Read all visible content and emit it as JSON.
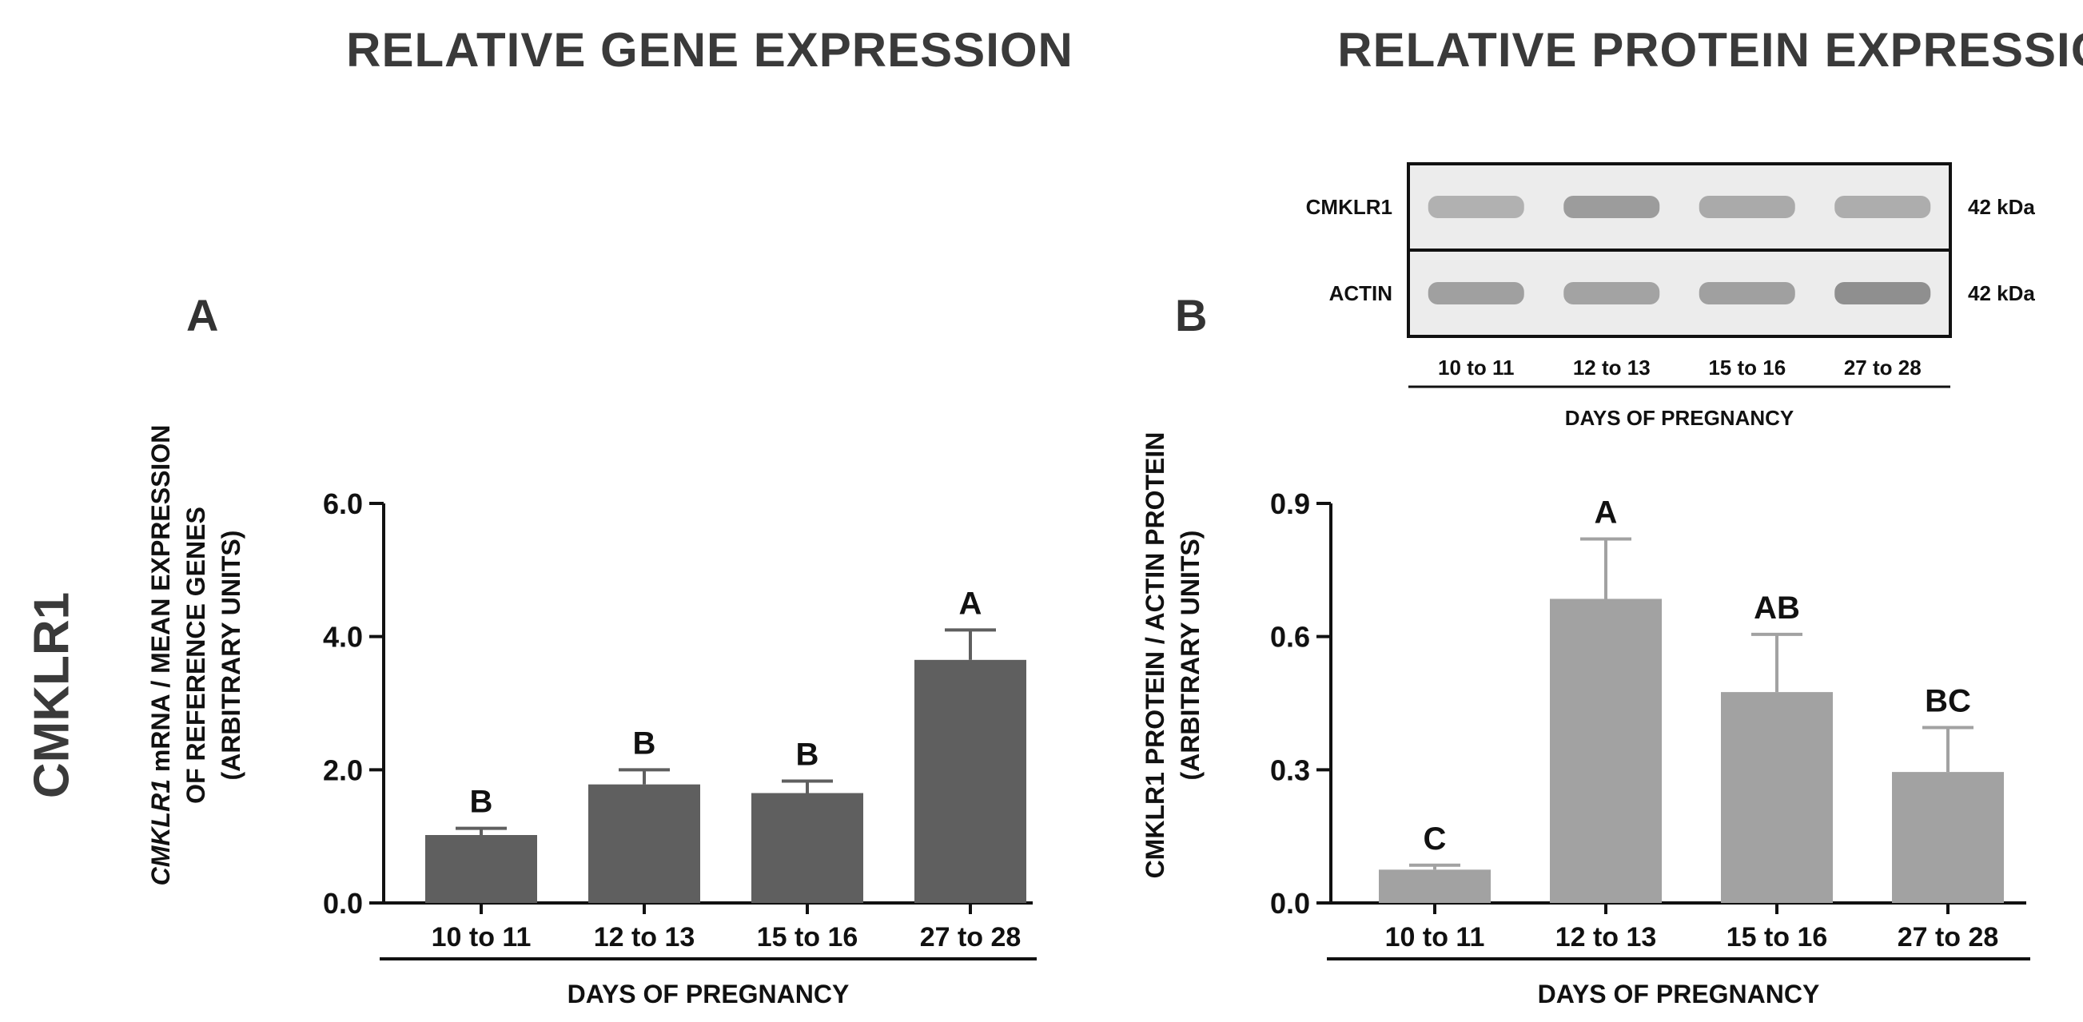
{
  "headings": {
    "gene": "RELATIVE GENE EXPRESSION",
    "protein": "RELATIVE PROTEIN EXPRESSION"
  },
  "side_label": "CMKLR1",
  "panels": {
    "a": "A",
    "b": "B"
  },
  "colors": {
    "bar_a": "#5f5f5f",
    "bar_b": "#a2a2a2",
    "axis": "#111111",
    "blot_band": "#7a7a7a"
  },
  "western_blot": {
    "rows": [
      {
        "label": "CMKLR1",
        "size": "42 kDa",
        "intensity": [
          0.45,
          0.75,
          0.55,
          0.5
        ]
      },
      {
        "label": "ACTIN",
        "size": "42 kDa",
        "intensity": [
          0.7,
          0.65,
          0.7,
          0.95
        ]
      }
    ],
    "lanes": [
      "10 to 11",
      "12 to 13",
      "15 to 16",
      "27 to 28"
    ],
    "xlabel": "DAYS OF PREGNANCY"
  },
  "chart_data": [
    {
      "type": "bar",
      "panel": "A",
      "categories": [
        "10 to 11",
        "12 to 13",
        "15 to 16",
        "27 to 28"
      ],
      "values": [
        1.02,
        1.78,
        1.65,
        3.65
      ],
      "errors": [
        0.1,
        0.22,
        0.18,
        0.45
      ],
      "letters": [
        "B",
        "B",
        "B",
        "A"
      ],
      "ylim": [
        0,
        6
      ],
      "yticks": [
        "0.0",
        "2.0",
        "4.0",
        "6.0"
      ],
      "ylabel_lines": [
        {
          "italic": "CMKLR1",
          "rest": " mRNA / MEAN EXPRESSION"
        },
        {
          "italic": "",
          "rest": "OF REFERENCE GENES"
        },
        {
          "italic": "",
          "rest": "(ARBITRARY UNITS)"
        }
      ],
      "xlabel": "DAYS OF PREGNANCY"
    },
    {
      "type": "bar",
      "panel": "B",
      "categories": [
        "10 to 11",
        "12 to 13",
        "15 to 16",
        "27 to 28"
      ],
      "values": [
        0.075,
        0.685,
        0.475,
        0.295
      ],
      "errors": [
        0.01,
        0.135,
        0.13,
        0.1
      ],
      "letters": [
        "C",
        "A",
        "AB",
        "BC"
      ],
      "ylim": [
        0,
        0.9
      ],
      "yticks": [
        "0.0",
        "0.3",
        "0.6",
        "0.9"
      ],
      "ylabel_lines": [
        {
          "italic": "",
          "rest": "CMKLR1 PROTEIN / ACTIN PROTEIN"
        },
        {
          "italic": "",
          "rest": "(ARBITRARY UNITS)"
        }
      ],
      "xlabel": "DAYS OF PREGNANCY"
    }
  ]
}
